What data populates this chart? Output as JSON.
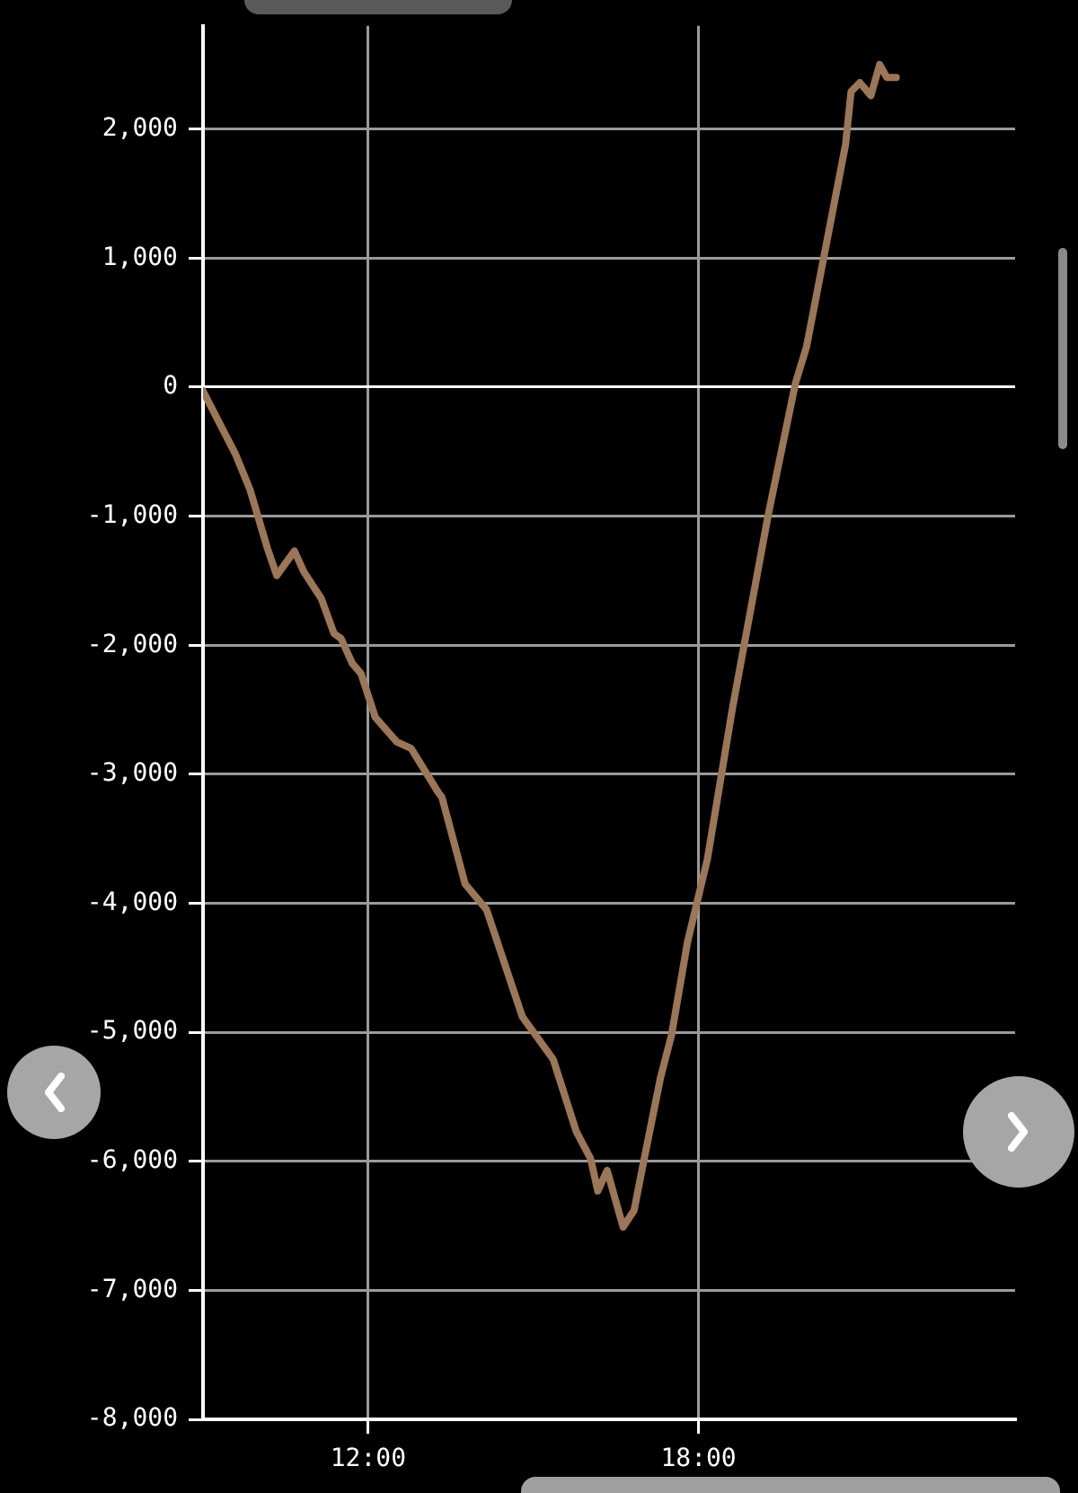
{
  "chart_data": {
    "type": "line",
    "x": [
      9.0,
      9.59,
      9.85,
      10.17,
      10.34,
      10.66,
      10.83,
      11.15,
      11.38,
      11.51,
      11.71,
      11.87,
      12.13,
      12.52,
      12.78,
      13.27,
      13.34,
      13.76,
      14.15,
      14.8,
      15.36,
      15.78,
      16.04,
      16.17,
      16.34,
      16.63,
      16.83,
      16.99,
      17.31,
      17.51,
      17.8,
      18.16,
      18.62,
      19.27,
      19.76,
      19.96,
      20.67,
      20.77,
      20.93,
      21.13,
      21.29,
      21.42,
      21.59
    ],
    "values": [
      -30,
      -520,
      -790,
      -1250,
      -1460,
      -1270,
      -1430,
      -1640,
      -1910,
      -1950,
      -2140,
      -2220,
      -2560,
      -2750,
      -2800,
      -3140,
      -3180,
      -3850,
      -4050,
      -4880,
      -5210,
      -5770,
      -5980,
      -6230,
      -6070,
      -6510,
      -6380,
      -6030,
      -5350,
      -5020,
      -4300,
      -3660,
      -2480,
      -980,
      30,
      310,
      1880,
      2290,
      2360,
      2260,
      2500,
      2400,
      2400
    ],
    "color": "#9b7657",
    "xlim": [
      9,
      23.75
    ],
    "xticks": [
      {
        "value": 12,
        "label": "12:00"
      },
      {
        "value": 18,
        "label": "18:00"
      }
    ],
    "ylim": [
      -8000,
      2800
    ],
    "yticks": [
      {
        "value": -8000,
        "label": "-8,000"
      },
      {
        "value": -7000,
        "label": "-7,000"
      },
      {
        "value": -6000,
        "label": "-6,000"
      },
      {
        "value": -5000,
        "label": "-5,000"
      },
      {
        "value": -4000,
        "label": "-4,000"
      },
      {
        "value": -3000,
        "label": "-3,000"
      },
      {
        "value": -2000,
        "label": "-2,000"
      },
      {
        "value": -1000,
        "label": "-1,000"
      },
      {
        "value": 0,
        "label": "0"
      },
      {
        "value": 1000,
        "label": "1,000"
      },
      {
        "value": 2000,
        "label": "2,000"
      }
    ],
    "grid": true,
    "marker": "none",
    "line_style": "solid"
  }
}
